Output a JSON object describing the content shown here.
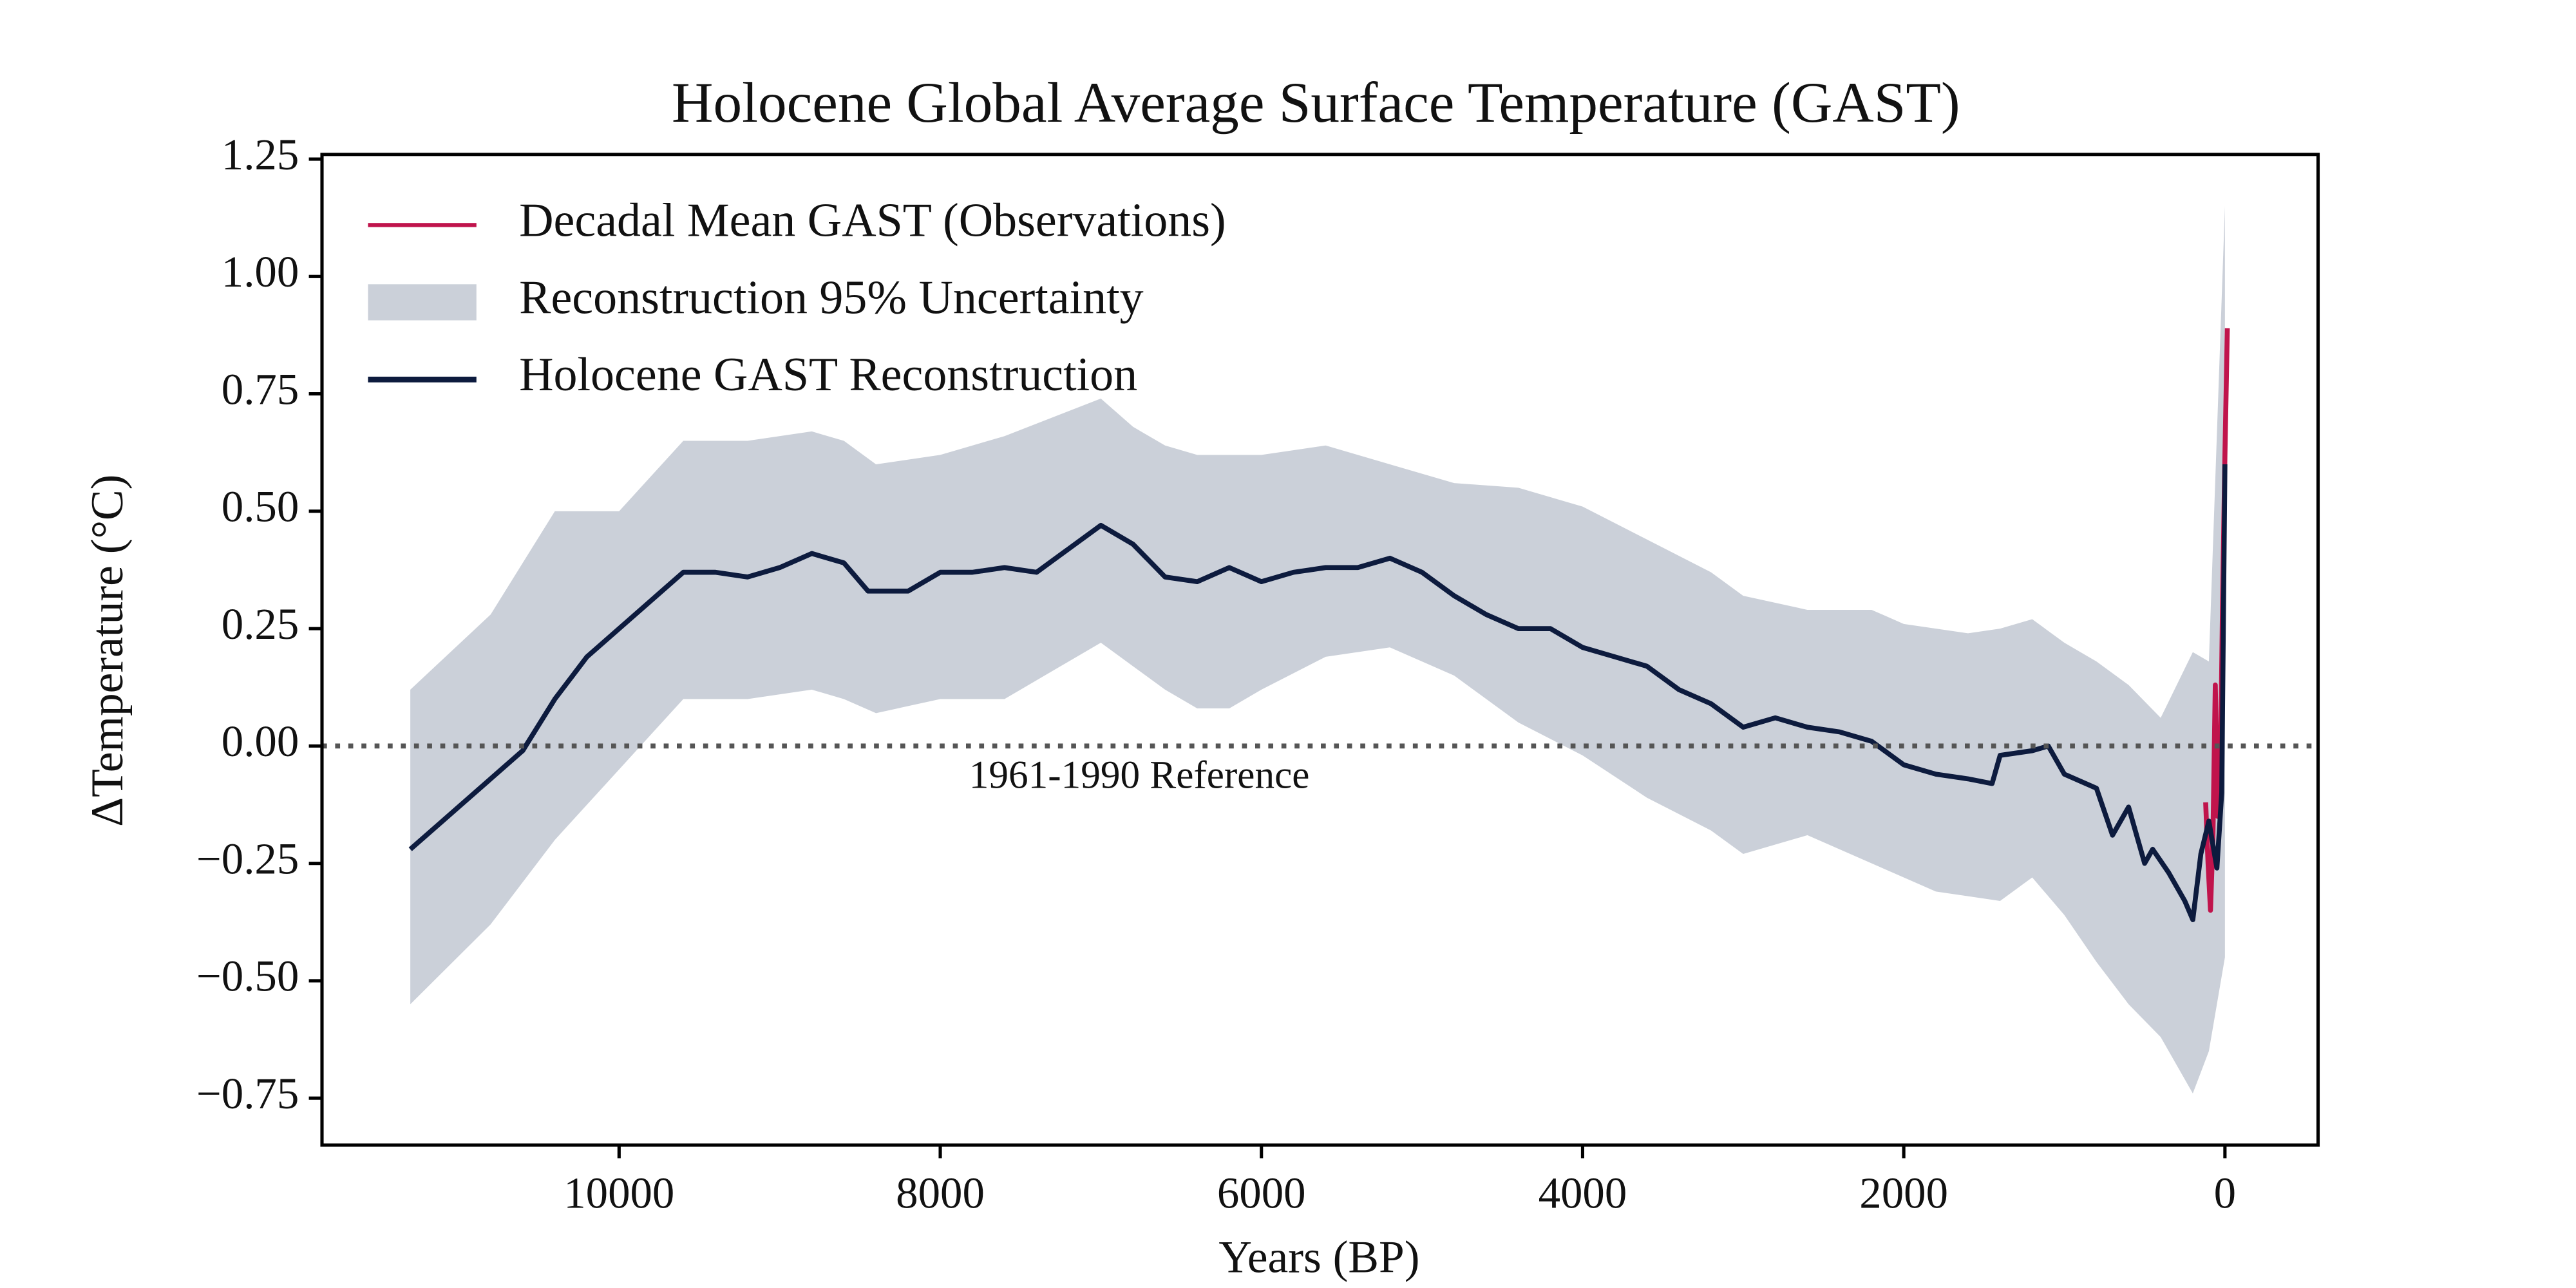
{
  "chart_data": {
    "type": "line",
    "title": "Holocene Global Average Surface Temperature (GAST)",
    "x_label": "Years (BP)",
    "y_label": "ΔTemperature (°C)",
    "xlim": [
      11850,
      -580
    ],
    "ylim": [
      -0.85,
      1.26
    ],
    "xticks": [
      10000,
      8000,
      6000,
      4000,
      2000,
      0
    ],
    "yticks": [
      {
        "value": 1.25,
        "label": "1.25"
      },
      {
        "value": 1.0,
        "label": "1.00"
      },
      {
        "value": 0.75,
        "label": "0.75"
      },
      {
        "value": 0.5,
        "label": "0.50"
      },
      {
        "value": 0.25,
        "label": "0.25"
      },
      {
        "value": 0,
        "label": "0.00"
      },
      {
        "value": -0.25,
        "label": "−0.25"
      },
      {
        "value": -0.5,
        "label": "−0.50"
      },
      {
        "value": -0.75,
        "label": "−0.75"
      }
    ],
    "legend": "upper left",
    "reference": {
      "value": 0,
      "label": "1961-1990 Reference",
      "color": "#555555"
    },
    "series": [
      {
        "name": "Decadal Mean GAST (Observations)",
        "type": "line",
        "color": "#c0144c",
        "x": [
          120,
          105,
          90,
          75,
          60,
          45,
          30,
          15,
          0,
          -15
        ],
        "values": [
          -0.12,
          -0.25,
          -0.35,
          -0.2,
          0.13,
          -0.15,
          -0.1,
          0.3,
          0.62,
          0.89
        ]
      },
      {
        "name": "Reconstruction 95% Uncertainty",
        "type": "band",
        "color": "#cbd0d9",
        "x": [
          11300,
          10800,
          10400,
          10000,
          9600,
          9200,
          8800,
          8600,
          8400,
          8000,
          7600,
          7000,
          6800,
          6600,
          6400,
          6200,
          6000,
          5600,
          5200,
          4800,
          4400,
          4000,
          3600,
          3200,
          3000,
          2600,
          2200,
          2000,
          1800,
          1600,
          1400,
          1200,
          1000,
          800,
          600,
          400,
          200,
          100,
          0
        ],
        "upper": [
          0.12,
          0.28,
          0.5,
          0.5,
          0.65,
          0.65,
          0.67,
          0.65,
          0.6,
          0.62,
          0.66,
          0.74,
          0.68,
          0.64,
          0.62,
          0.62,
          0.62,
          0.64,
          0.6,
          0.56,
          0.55,
          0.51,
          0.44,
          0.37,
          0.32,
          0.29,
          0.29,
          0.26,
          0.25,
          0.24,
          0.25,
          0.27,
          0.22,
          0.18,
          0.13,
          0.06,
          0.2,
          0.18,
          1.15
        ],
        "lower": [
          -0.55,
          -0.38,
          -0.2,
          -0.05,
          0.1,
          0.1,
          0.12,
          0.1,
          0.07,
          0.1,
          0.1,
          0.22,
          0.17,
          0.12,
          0.08,
          0.08,
          0.12,
          0.19,
          0.21,
          0.15,
          0.05,
          -0.02,
          -0.11,
          -0.18,
          -0.23,
          -0.19,
          -0.25,
          -0.28,
          -0.31,
          -0.32,
          -0.33,
          -0.28,
          -0.36,
          -0.46,
          -0.55,
          -0.62,
          -0.74,
          -0.65,
          -0.45
        ]
      },
      {
        "name": "Holocene GAST Reconstruction",
        "type": "line",
        "color": "#0d1b3e",
        "x": [
          11300,
          11000,
          10800,
          10600,
          10400,
          10200,
          10000,
          9800,
          9600,
          9400,
          9200,
          9000,
          8800,
          8600,
          8450,
          8200,
          8000,
          7800,
          7600,
          7400,
          7200,
          7000,
          6800,
          6600,
          6400,
          6200,
          6000,
          5800,
          5600,
          5400,
          5200,
          5000,
          4800,
          4600,
          4400,
          4200,
          4000,
          3800,
          3600,
          3400,
          3200,
          3000,
          2800,
          2600,
          2400,
          2200,
          2000,
          1800,
          1600,
          1450,
          1400,
          1200,
          1100,
          1000,
          800,
          700,
          600,
          500,
          450,
          350,
          250,
          200,
          150,
          100,
          50,
          20,
          0
        ],
        "values": [
          -0.22,
          -0.13,
          -0.07,
          -0.01,
          0.1,
          0.19,
          0.25,
          0.31,
          0.37,
          0.37,
          0.36,
          0.38,
          0.41,
          0.39,
          0.33,
          0.33,
          0.37,
          0.37,
          0.38,
          0.37,
          0.42,
          0.47,
          0.43,
          0.36,
          0.35,
          0.38,
          0.35,
          0.37,
          0.38,
          0.38,
          0.4,
          0.37,
          0.32,
          0.28,
          0.25,
          0.25,
          0.21,
          0.19,
          0.17,
          0.12,
          0.09,
          0.04,
          0.06,
          0.04,
          0.03,
          0.01,
          -0.04,
          -0.06,
          -0.07,
          -0.08,
          -0.02,
          -0.01,
          0.0,
          -0.06,
          -0.09,
          -0.19,
          -0.13,
          -0.25,
          -0.22,
          -0.27,
          -0.33,
          -0.37,
          -0.23,
          -0.16,
          -0.26,
          -0.1,
          0.6
        ]
      }
    ]
  }
}
